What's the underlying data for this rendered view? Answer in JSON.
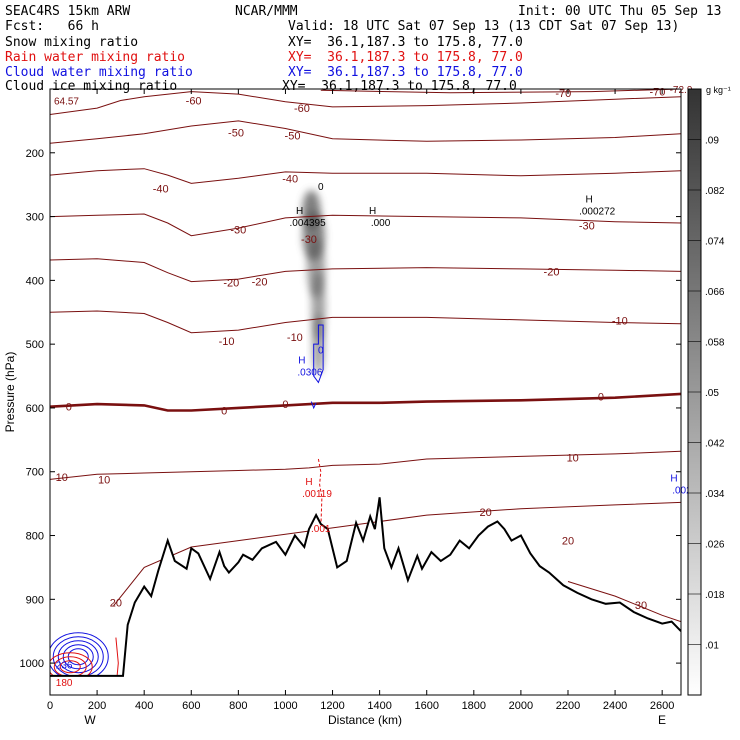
{
  "header": {
    "model": "SEAC4RS 15km ARW",
    "center": "NCAR/MMM",
    "init": "Init: 00 UTC Thu 05 Sep 13",
    "fcst": "Fcst:   66 h",
    "valid": "Valid: 18 UTC Sat 07 Sep 13 (13 CDT Sat 07 Sep 13)",
    "rows": [
      {
        "field": "Snow mixing ratio",
        "xy": "XY=  36.1,187.3 to 175.8, 77.0",
        "color": "#000000"
      },
      {
        "field": "Rain water mixing ratio",
        "xy": "XY=  36.1,187.3 to 175.8, 77.0",
        "color": "#e01010"
      },
      {
        "field": "Cloud water mixing ratio",
        "xy": "XY=  36.1,187.3 to 175.8, 77.0",
        "color": "#1010e0"
      },
      {
        "field": "Cloud ice mixing ratio",
        "xy": "XY=  36.1,187.3 to 175.8, 77.0",
        "color": "#000000"
      }
    ]
  },
  "colors": {
    "temperature": "#7a1010",
    "zero_isotherm": "#7a1010",
    "rain": "#e01010",
    "cloud_water": "#1010e0",
    "terrain": "#000000"
  },
  "chart_data": {
    "type": "contour-cross-section",
    "xlabel": "Distance (km)",
    "ylabel": "Pressure (hPa)",
    "xlim": [
      0,
      2680
    ],
    "ylim": [
      1050,
      100
    ],
    "x_ticks": [
      0,
      200,
      400,
      600,
      800,
      1000,
      1200,
      1400,
      1600,
      1800,
      2000,
      2200,
      2400,
      2600
    ],
    "y_ticks": [
      200,
      300,
      400,
      500,
      600,
      700,
      800,
      900,
      1000
    ],
    "endpoints": {
      "left": "W",
      "right": "E"
    },
    "colorbar": {
      "unit": "g kg⁻¹",
      "ticks": [
        ".01",
        ".018",
        ".026",
        ".034",
        ".042",
        ".05",
        ".058",
        ".066",
        ".074",
        ".082",
        ".09"
      ]
    },
    "temperature_contours": [
      {
        "label": "-70",
        "x": [
          1150,
          1700,
          2300,
          2680
        ],
        "p": [
          102,
          106,
          104,
          100
        ]
      },
      {
        "label": "-60",
        "x": [
          0,
          200,
          300,
          400,
          600,
          800,
          1000,
          1200,
          1600,
          2000,
          2400,
          2680
        ],
        "p": [
          140,
          130,
          118,
          112,
          104,
          108,
          120,
          128,
          126,
          122,
          116,
          112
        ]
      },
      {
        "label": "-50",
        "x": [
          0,
          200,
          400,
          600,
          800,
          1000,
          1200,
          1600,
          2000,
          2400,
          2680
        ],
        "p": [
          185,
          178,
          170,
          158,
          150,
          162,
          178,
          182,
          180,
          176,
          170
        ]
      },
      {
        "label": "-40",
        "x": [
          0,
          200,
          400,
          500,
          600,
          800,
          1000,
          1200,
          1600,
          2000,
          2400,
          2680
        ],
        "p": [
          235,
          228,
          225,
          235,
          248,
          240,
          230,
          232,
          232,
          236,
          232,
          228
        ]
      },
      {
        "label": "-30",
        "x": [
          0,
          200,
          400,
          500,
          600,
          800,
          1000,
          1200,
          1600,
          2000,
          2400,
          2680
        ],
        "p": [
          300,
          298,
          296,
          310,
          330,
          318,
          302,
          298,
          300,
          302,
          308,
          310
        ]
      },
      {
        "label": "-20",
        "x": [
          0,
          200,
          400,
          500,
          600,
          800,
          1000,
          1200,
          1600,
          2000,
          2400,
          2680
        ],
        "p": [
          368,
          366,
          372,
          388,
          402,
          398,
          386,
          382,
          380,
          382,
          384,
          386
        ]
      },
      {
        "label": "-10",
        "x": [
          0,
          200,
          400,
          500,
          600,
          800,
          1000,
          1200,
          1600,
          2000,
          2400,
          2680
        ],
        "p": [
          450,
          448,
          452,
          466,
          482,
          478,
          466,
          458,
          458,
          462,
          466,
          468
        ]
      },
      {
        "label": "0",
        "x": [
          0,
          200,
          400,
          500,
          600,
          800,
          1000,
          1200,
          1400,
          1600,
          2000,
          2400,
          2680
        ],
        "p": [
          598,
          594,
          596,
          604,
          604,
          600,
          596,
          592,
          592,
          590,
          588,
          584,
          578
        ]
      },
      {
        "label": "10",
        "x": [
          0,
          200,
          400,
          600,
          800,
          1000,
          1100,
          1200,
          1400,
          1600,
          2000,
          2400,
          2680
        ],
        "p": [
          712,
          704,
          702,
          700,
          698,
          696,
          694,
          690,
          688,
          680,
          676,
          672,
          668
        ]
      },
      {
        "label": "20",
        "x": [
          270,
          400,
          600,
          800,
          1000,
          1200,
          1400,
          1600,
          2000,
          2400,
          2680
        ],
        "p": [
          910,
          850,
          818,
          808,
          798,
          788,
          778,
          768,
          758,
          752,
          748
        ]
      },
      {
        "label": "30",
        "x": [
          2200,
          2400,
          2600,
          2680
        ],
        "p": [
          872,
          895,
          925,
          935
        ]
      }
    ],
    "temperature_labels": [
      {
        "text": "-70",
        "x": 2180,
        "p": 106
      },
      {
        "text": "-70",
        "x": 2580,
        "p": 104
      },
      {
        "text": "-60",
        "x": 610,
        "p": 118
      },
      {
        "text": "-60",
        "x": 1070,
        "p": 130
      },
      {
        "text": "-50",
        "x": 790,
        "p": 168
      },
      {
        "text": "-50",
        "x": 1030,
        "p": 173
      },
      {
        "text": "-40",
        "x": 1020,
        "p": 240
      },
      {
        "text": "-40",
        "x": 470,
        "p": 256
      },
      {
        "text": "-30",
        "x": 800,
        "p": 320
      },
      {
        "text": "-30",
        "x": 2280,
        "p": 314
      },
      {
        "text": "-30",
        "x": 1100,
        "p": 335
      },
      {
        "text": "-20",
        "x": 2130,
        "p": 386
      },
      {
        "text": "-20",
        "x": 770,
        "p": 403
      },
      {
        "text": "-20",
        "x": 890,
        "p": 402
      },
      {
        "text": "-10",
        "x": 2420,
        "p": 463
      },
      {
        "text": "-10",
        "x": 750,
        "p": 495
      },
      {
        "text": "-10",
        "x": 1040,
        "p": 489
      },
      {
        "text": "0",
        "x": 2340,
        "p": 582
      },
      {
        "text": "0",
        "x": 1000,
        "p": 594
      },
      {
        "text": "0",
        "x": 740,
        "p": 604
      },
      {
        "text": "0",
        "x": 80,
        "p": 598
      },
      {
        "text": "10",
        "x": 2220,
        "p": 678
      },
      {
        "text": "10",
        "x": 50,
        "p": 708
      },
      {
        "text": "10",
        "x": 230,
        "p": 712
      },
      {
        "text": "20",
        "x": 1850,
        "p": 763
      },
      {
        "text": "20",
        "x": 2200,
        "p": 808
      },
      {
        "text": "20",
        "x": 280,
        "p": 905
      },
      {
        "text": "30",
        "x": 2510,
        "p": 909
      }
    ],
    "terrain": {
      "x": [
        0,
        310,
        330,
        360,
        400,
        430,
        460,
        500,
        530,
        580,
        600,
        630,
        680,
        720,
        740,
        760,
        800,
        820,
        860,
        900,
        960,
        1000,
        1040,
        1080,
        1100,
        1130,
        1150,
        1180,
        1220,
        1260,
        1300,
        1330,
        1360,
        1380,
        1400,
        1420,
        1450,
        1480,
        1520,
        1560,
        1580,
        1620,
        1660,
        1700,
        1740,
        1780,
        1820,
        1860,
        1900,
        1930,
        1960,
        2000,
        2040,
        2080,
        2120,
        2180,
        2240,
        2300,
        2360,
        2420,
        2480,
        2540,
        2600,
        2640,
        2680
      ],
      "p": [
        1020,
        1020,
        940,
        905,
        880,
        895,
        855,
        808,
        840,
        852,
        820,
        828,
        868,
        826,
        848,
        858,
        842,
        830,
        838,
        820,
        810,
        830,
        800,
        818,
        790,
        768,
        782,
        790,
        850,
        840,
        780,
        808,
        770,
        790,
        740,
        820,
        850,
        820,
        870,
        832,
        852,
        826,
        840,
        830,
        808,
        820,
        800,
        786,
        778,
        790,
        808,
        800,
        828,
        848,
        858,
        878,
        890,
        900,
        907,
        905,
        920,
        930,
        938,
        935,
        950
      ]
    },
    "maxima": [
      {
        "field": "Cloud ice mixing ratio",
        "value": ".004395",
        "x": 1060,
        "p": 305
      },
      {
        "field": "Cloud ice mixing ratio",
        "value": ".000",
        "x": 1370,
        "p": 305
      },
      {
        "field": "Cloud ice mixing ratio",
        "value": ".000272",
        "x": 2290,
        "p": 287
      },
      {
        "field": "Cloud water mixing ratio",
        "value": ".0306",
        "x": 1070,
        "p": 540
      },
      {
        "field": "Cloud water mixing ratio",
        "value": ".002",
        "x": 2650,
        "p": 725
      },
      {
        "field": "Rain water mixing ratio",
        "value": ".00119",
        "x": 1100,
        "p": 730
      }
    ],
    "extra_labels": [
      {
        "text": "64.57",
        "x": 70,
        "p": 118,
        "color": "#7a1010"
      },
      {
        "text": "-72.9",
        "x": 2680,
        "p": 100,
        "color": "#7a1010"
      },
      {
        "text": "0",
        "x": 1150,
        "p": 252,
        "color": "#000000"
      },
      {
        "text": ".001",
        "x": 1150,
        "p": 788,
        "color": "#e01010"
      },
      {
        "text": "0",
        "x": 1150,
        "p": 508,
        "color": "#1010e0"
      },
      {
        "text": "236",
        "x": 60,
        "p": 1002,
        "color": "#1010e0"
      },
      {
        "text": "180",
        "x": 60,
        "p": 1030,
        "color": "#e01010"
      }
    ],
    "snow_plume": [
      {
        "x": 1110,
        "p": 290,
        "w": 18,
        "h": 40
      },
      {
        "x": 1120,
        "p": 330,
        "w": 22,
        "h": 50
      },
      {
        "x": 1130,
        "p": 380,
        "w": 18,
        "h": 60
      },
      {
        "x": 1140,
        "p": 440,
        "w": 14,
        "h": 70
      },
      {
        "x": 1140,
        "p": 500,
        "w": 12,
        "h": 60
      }
    ]
  }
}
